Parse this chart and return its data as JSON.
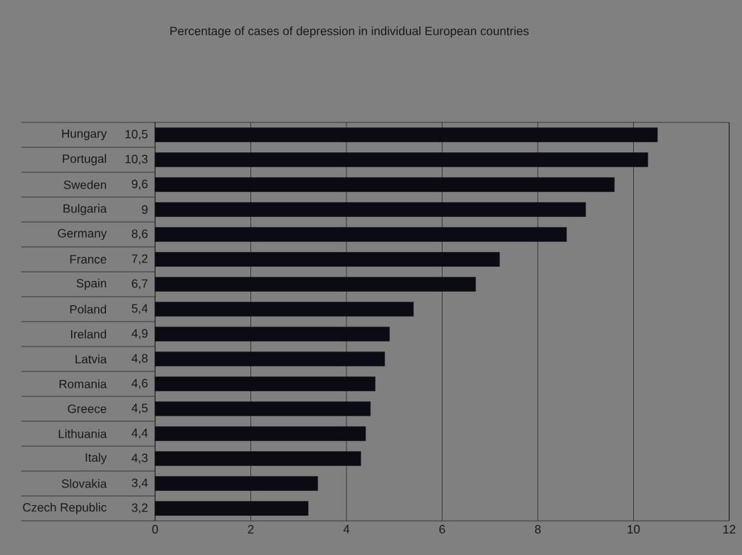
{
  "chart_data": {
    "type": "bar",
    "orientation": "horizontal",
    "title": "Percentage of cases of depression in individual European countries",
    "categories": [
      "Hungary",
      "Portugal",
      "Sweden",
      "Bulgaria",
      "Germany",
      "France",
      "Spain",
      "Poland",
      "Ireland",
      "Latvia",
      "Romania",
      "Greece",
      "Lithuania",
      "Italy",
      "Slovakia",
      "Czech Republic"
    ],
    "values": [
      10.5,
      10.3,
      9.6,
      9,
      8.6,
      7.2,
      6.7,
      5.4,
      4.9,
      4.8,
      4.6,
      4.5,
      4.4,
      4.3,
      3.4,
      3.2
    ],
    "value_labels": [
      "10,5",
      "10,3",
      "9,6",
      "9",
      "8,6",
      "7,2",
      "6,7",
      "5,4",
      "4,9",
      "4,8",
      "4,6",
      "4,5",
      "4,4",
      "4,3",
      "3,4",
      "3,2"
    ],
    "color": "#0b0b14",
    "xlim": [
      0,
      12
    ],
    "xticks": [
      0,
      2,
      4,
      6,
      8,
      10,
      12
    ],
    "grid": "x"
  }
}
